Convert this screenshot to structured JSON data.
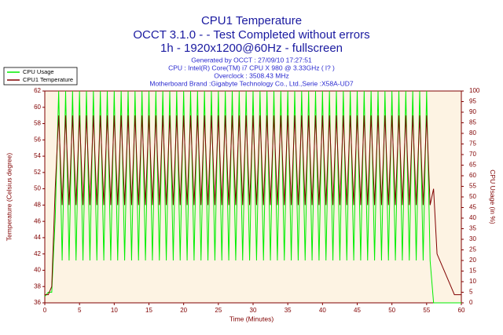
{
  "chart_data": {
    "type": "line",
    "title": "CPU1 Temperature",
    "subtitle": [
      "OCCT 3.1.0 -  - Test Completed without errors",
      "1h - 1920x1200@60Hz - fullscreen"
    ],
    "annotations": [
      "Generated by OCCT : 27/09/10 17:27:51",
      "CPU : Intel(R) Core(TM) i7 CPU X 980 @ 3.33GHz (  l? )",
      "Overclock : 3508.43 MHz",
      "Motherboard Brand :Gigabyte Technology Co., Ltd.,Serie :X58A-UD7"
    ],
    "xlabel": "Time (Minutes)",
    "ylabel": "Temperature (Celsius degree)",
    "y2label": "CPU Usage (in %)",
    "xlim": [
      0,
      60
    ],
    "xticks": [
      0,
      5,
      10,
      15,
      20,
      25,
      30,
      35,
      40,
      45,
      50,
      55,
      60
    ],
    "ylim": [
      36,
      62
    ],
    "yticks": [
      36,
      38,
      40,
      42,
      44,
      46,
      48,
      50,
      52,
      54,
      56,
      58,
      60,
      62
    ],
    "y2lim": [
      0,
      100
    ],
    "y2ticks": [
      0,
      5,
      10,
      15,
      20,
      25,
      30,
      35,
      40,
      45,
      50,
      55,
      60,
      65,
      70,
      75,
      80,
      85,
      90,
      95,
      100
    ],
    "grid": false,
    "legend": "top-left",
    "x": [
      0,
      0.5,
      1,
      1.5,
      2,
      2.5,
      3,
      3.5,
      4,
      4.5,
      5,
      5.5,
      6,
      6.5,
      7,
      7.5,
      8,
      8.5,
      9,
      9.5,
      10,
      10.5,
      11,
      11.5,
      12,
      12.5,
      13,
      13.5,
      14,
      14.5,
      15,
      15.5,
      16,
      16.5,
      17,
      17.5,
      18,
      18.5,
      19,
      19.5,
      20,
      20.5,
      21,
      21.5,
      22,
      22.5,
      23,
      23.5,
      24,
      24.5,
      25,
      25.5,
      26,
      26.5,
      27,
      27.5,
      28,
      28.5,
      29,
      29.5,
      30,
      30.5,
      31,
      31.5,
      32,
      32.5,
      33,
      33.5,
      34,
      34.5,
      35,
      35.5,
      36,
      36.5,
      37,
      37.5,
      38,
      38.5,
      39,
      39.5,
      40,
      40.5,
      41,
      41.5,
      42,
      42.5,
      43,
      43.5,
      44,
      44.5,
      45,
      45.5,
      46,
      46.5,
      47,
      47.5,
      48,
      48.5,
      49,
      49.5,
      50,
      50.5,
      51,
      51.5,
      52,
      52.5,
      53,
      53.5,
      54,
      54.5,
      55,
      55.5,
      56,
      56.5,
      57,
      57.5,
      58,
      58.5,
      59,
      59.5,
      60
    ],
    "series": [
      {
        "name": "CPU Usage",
        "color": "#00ee00",
        "axis": "y2",
        "values": [
          3,
          5,
          5,
          40,
          100,
          20,
          100,
          20,
          100,
          20,
          100,
          20,
          100,
          20,
          100,
          20,
          100,
          20,
          100,
          20,
          100,
          20,
          100,
          20,
          100,
          20,
          100,
          20,
          100,
          20,
          100,
          20,
          100,
          20,
          100,
          20,
          100,
          20,
          100,
          20,
          100,
          20,
          100,
          20,
          100,
          20,
          100,
          20,
          100,
          20,
          100,
          20,
          100,
          20,
          100,
          20,
          100,
          20,
          100,
          20,
          100,
          20,
          100,
          20,
          100,
          20,
          100,
          20,
          100,
          20,
          100,
          20,
          100,
          20,
          100,
          20,
          100,
          20,
          100,
          20,
          100,
          20,
          100,
          20,
          100,
          20,
          100,
          20,
          100,
          20,
          100,
          20,
          100,
          20,
          100,
          20,
          100,
          20,
          100,
          20,
          100,
          20,
          100,
          20,
          100,
          20,
          100,
          20,
          100,
          20,
          100,
          20,
          0,
          0,
          0,
          0,
          0,
          0,
          0,
          0,
          0
        ]
      },
      {
        "name": "CPU1 Temperature",
        "color": "#800000",
        "values": [
          37,
          37,
          38,
          50,
          59,
          48,
          59,
          48,
          59,
          48,
          59,
          48,
          59,
          48,
          59,
          48,
          59,
          48,
          59,
          48,
          59,
          48,
          59,
          48,
          59,
          48,
          59,
          48,
          59,
          48,
          59,
          48,
          59,
          48,
          59,
          48,
          59,
          48,
          59,
          48,
          59,
          48,
          59,
          48,
          59,
          48,
          59,
          48,
          59,
          48,
          59,
          48,
          59,
          48,
          59,
          48,
          59,
          48,
          59,
          48,
          59,
          48,
          59,
          48,
          59,
          48,
          59,
          48,
          59,
          48,
          59,
          48,
          59,
          48,
          59,
          48,
          59,
          48,
          59,
          48,
          59,
          48,
          59,
          48,
          59,
          48,
          59,
          48,
          59,
          48,
          59,
          48,
          59,
          48,
          59,
          48,
          59,
          48,
          59,
          48,
          59,
          48,
          59,
          48,
          59,
          48,
          59,
          48,
          59,
          48,
          59,
          48,
          50,
          42,
          41,
          40,
          39,
          38,
          37,
          37,
          37
        ]
      }
    ]
  }
}
